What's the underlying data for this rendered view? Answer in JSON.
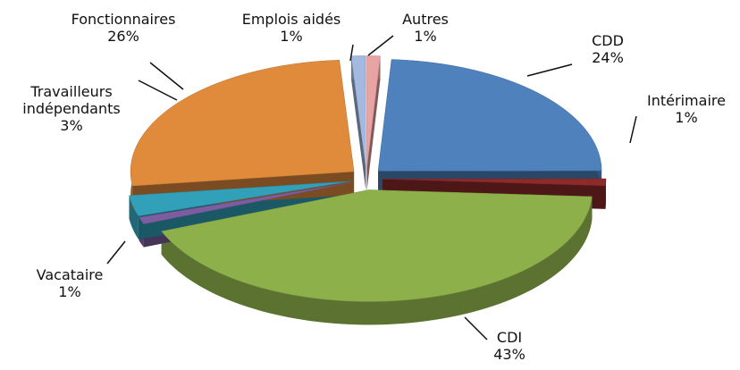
{
  "chart_data": {
    "type": "pie",
    "categories": [
      "CDD",
      "Intérimaire",
      "CDI",
      "Vacataire",
      "Travailleurs indépendants",
      "Fonctionnaires",
      "Emplois aidés",
      "Autres"
    ],
    "values": [
      24,
      1,
      43,
      1,
      3,
      26,
      1,
      1
    ],
    "value_labels": [
      "24%",
      "1%",
      "43%",
      "1%",
      "3%",
      "26%",
      "1%",
      "1%"
    ],
    "colors": [
      "#4f81bd",
      "#8e2a2a",
      "#8db04a",
      "#7c5ea0",
      "#31a0b8",
      "#e08a3c",
      "#a3b9e0",
      "#e8a3a3"
    ]
  }
}
